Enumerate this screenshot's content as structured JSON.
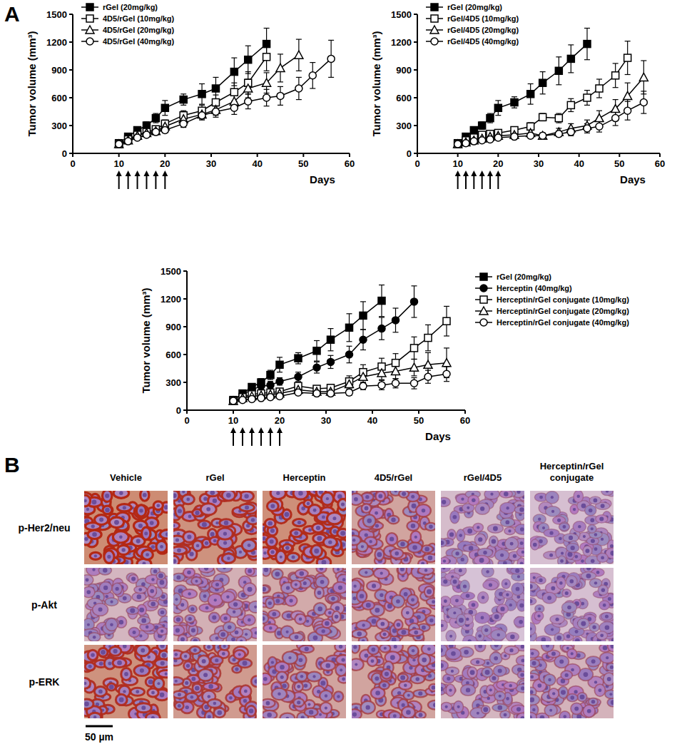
{
  "panel_labels": [
    "A",
    "B"
  ],
  "chart_data": [
    {
      "type": "line",
      "xlabel": "Days",
      "ylabel": "Tumor volume (mm³)",
      "xlim": [
        0,
        60
      ],
      "xticks": [
        0,
        10,
        20,
        30,
        40,
        50,
        60
      ],
      "ylim": [
        0,
        1500
      ],
      "yticks": [
        0,
        300,
        600,
        900,
        1200,
        1500
      ],
      "legend": "upper left",
      "treatment_days": [
        10,
        12,
        14,
        16,
        18,
        20
      ],
      "x": [
        10,
        12,
        14,
        16,
        18,
        20,
        24,
        28,
        31,
        35,
        38,
        42,
        45,
        49,
        52,
        56
      ],
      "series": [
        {
          "name": "rGel (20mg/kg)",
          "color": "#000000",
          "marker": "square",
          "values": [
            110,
            180,
            250,
            300,
            380,
            490,
            580,
            640,
            700,
            880,
            1010,
            1180,
            null,
            null,
            null,
            null
          ],
          "errors": [
            20,
            30,
            30,
            40,
            50,
            80,
            60,
            110,
            120,
            150,
            150,
            170,
            null,
            null,
            null,
            null
          ]
        },
        {
          "name": "4D5/rGel (10mg/kg)",
          "color": "#000000",
          "marker": "square-open",
          "values": [
            100,
            150,
            200,
            230,
            260,
            320,
            410,
            460,
            550,
            660,
            760,
            1040,
            null,
            null,
            null,
            null
          ],
          "errors": [
            15,
            20,
            25,
            30,
            35,
            40,
            50,
            60,
            80,
            100,
            120,
            150,
            null,
            null,
            null,
            null
          ]
        },
        {
          "name": "4D5/rGel (20mg/kg)",
          "color": "#000000",
          "marker": "triangle-open",
          "values": [
            100,
            140,
            190,
            220,
            240,
            290,
            370,
            420,
            470,
            560,
            700,
            760,
            920,
            1060,
            null,
            null
          ],
          "errors": [
            15,
            20,
            20,
            25,
            30,
            35,
            40,
            50,
            60,
            80,
            100,
            110,
            150,
            170,
            null,
            null
          ]
        },
        {
          "name": "4D5/rGel (40mg/kg)",
          "color": "#000000",
          "marker": "circle-open",
          "values": [
            100,
            130,
            170,
            200,
            230,
            250,
            320,
            410,
            450,
            490,
            560,
            600,
            620,
            700,
            840,
            1020
          ],
          "errors": [
            15,
            20,
            20,
            25,
            30,
            30,
            40,
            50,
            60,
            70,
            80,
            90,
            100,
            120,
            140,
            200
          ]
        }
      ]
    },
    {
      "type": "line",
      "xlabel": "Days",
      "ylabel": "Tumor volume (mm³)",
      "xlim": [
        0,
        60
      ],
      "xticks": [
        0,
        10,
        20,
        30,
        40,
        50,
        60
      ],
      "ylim": [
        0,
        1500
      ],
      "yticks": [
        0,
        300,
        600,
        900,
        1200,
        1500
      ],
      "legend": "upper left",
      "treatment_days": [
        10,
        12,
        14,
        16,
        18,
        20
      ],
      "x": [
        10,
        12,
        14,
        16,
        18,
        20,
        24,
        28,
        31,
        35,
        38,
        42,
        45,
        49,
        52,
        56
      ],
      "series": [
        {
          "name": "rGel (20mg/kg)",
          "color": "#000000",
          "marker": "square",
          "values": [
            110,
            180,
            250,
            300,
            380,
            490,
            550,
            640,
            760,
            890,
            1020,
            1180,
            null,
            null,
            null,
            null
          ],
          "errors": [
            20,
            30,
            30,
            40,
            50,
            80,
            60,
            110,
            120,
            150,
            150,
            170,
            null,
            null,
            null,
            null
          ]
        },
        {
          "name": "rGel/4D5 (10mg/kg)",
          "color": "#000000",
          "marker": "square-open",
          "values": [
            100,
            140,
            170,
            200,
            210,
            220,
            250,
            290,
            390,
            380,
            520,
            600,
            700,
            840,
            1030,
            null
          ],
          "errors": [
            15,
            20,
            20,
            25,
            25,
            30,
            30,
            40,
            40,
            50,
            70,
            80,
            100,
            130,
            180,
            null
          ]
        },
        {
          "name": "rGel/4D5 (20mg/kg)",
          "color": "#000000",
          "marker": "triangle-open",
          "values": [
            100,
            120,
            140,
            160,
            180,
            190,
            200,
            220,
            190,
            230,
            270,
            300,
            380,
            480,
            620,
            820
          ],
          "errors": [
            15,
            15,
            20,
            20,
            25,
            25,
            30,
            30,
            30,
            40,
            50,
            60,
            80,
            100,
            140,
            180
          ]
        },
        {
          "name": "rGel/4D5 (40mg/kg)",
          "color": "#000000",
          "marker": "circle-open",
          "values": [
            100,
            110,
            130,
            140,
            150,
            170,
            180,
            190,
            190,
            210,
            230,
            270,
            290,
            380,
            460,
            550
          ],
          "errors": [
            15,
            15,
            15,
            20,
            20,
            20,
            25,
            25,
            30,
            30,
            40,
            50,
            60,
            80,
            100,
            120
          ]
        }
      ]
    },
    {
      "type": "line",
      "xlabel": "Days",
      "ylabel": "Tumor volume (mm³)",
      "xlim": [
        0,
        60
      ],
      "xticks": [
        0,
        10,
        20,
        30,
        40,
        50,
        60
      ],
      "ylim": [
        0,
        1500
      ],
      "yticks": [
        0,
        300,
        600,
        900,
        1200,
        1500
      ],
      "legend": "right",
      "treatment_days": [
        10,
        12,
        14,
        16,
        18,
        20
      ],
      "x": [
        10,
        12,
        14,
        16,
        18,
        20,
        24,
        28,
        31,
        35,
        38,
        42,
        45,
        49,
        52,
        56
      ],
      "series": [
        {
          "name": "rGel (20mg/kg)",
          "color": "#000000",
          "marker": "square",
          "values": [
            110,
            180,
            250,
            300,
            380,
            490,
            560,
            640,
            760,
            890,
            1020,
            1180,
            null,
            null,
            null,
            null
          ],
          "errors": [
            20,
            30,
            30,
            40,
            50,
            80,
            60,
            110,
            120,
            150,
            150,
            170,
            null,
            null,
            null,
            null
          ]
        },
        {
          "name": "Herceptin (40mg/kg)",
          "color": "#000000",
          "marker": "circle",
          "values": [
            110,
            170,
            220,
            260,
            270,
            310,
            360,
            460,
            520,
            600,
            760,
            880,
            970,
            1170,
            null,
            null
          ],
          "errors": [
            20,
            25,
            30,
            30,
            40,
            40,
            50,
            60,
            70,
            90,
            110,
            120,
            130,
            170,
            null,
            null
          ]
        },
        {
          "name": "Herceptin/rGel conjugate (10mg/kg)",
          "color": "#000000",
          "marker": "square-open",
          "values": [
            100,
            140,
            170,
            180,
            190,
            200,
            260,
            230,
            240,
            310,
            410,
            470,
            510,
            670,
            780,
            960
          ],
          "errors": [
            15,
            20,
            20,
            20,
            25,
            25,
            30,
            30,
            40,
            60,
            80,
            90,
            100,
            120,
            140,
            160
          ]
        },
        {
          "name": "Herceptin/rGel conjugate (20mg/kg)",
          "color": "#000000",
          "marker": "triangle-open",
          "values": [
            100,
            130,
            150,
            160,
            170,
            180,
            220,
            200,
            200,
            280,
            360,
            400,
            420,
            460,
            490,
            510
          ],
          "errors": [
            15,
            15,
            20,
            20,
            20,
            25,
            30,
            30,
            30,
            50,
            60,
            70,
            80,
            90,
            130,
            160
          ]
        },
        {
          "name": "Herceptin/rGel conjugate (40mg/kg)",
          "color": "#000000",
          "marker": "circle-open",
          "values": [
            100,
            110,
            120,
            130,
            140,
            150,
            190,
            180,
            180,
            190,
            260,
            270,
            290,
            290,
            360,
            390
          ],
          "errors": [
            15,
            15,
            15,
            20,
            20,
            20,
            25,
            25,
            25,
            30,
            40,
            50,
            50,
            60,
            70,
            80
          ]
        }
      ]
    }
  ],
  "ihc_grid": {
    "columns": [
      "Vehicle",
      "rGel",
      "Herceptin",
      "4D5/rGel",
      "rGel/4D5",
      "Herceptin/rGel conjugate"
    ],
    "rows": [
      "p-Her2/neu",
      "p-Akt",
      "p-ERK"
    ],
    "scale_bar": "50 µm"
  }
}
